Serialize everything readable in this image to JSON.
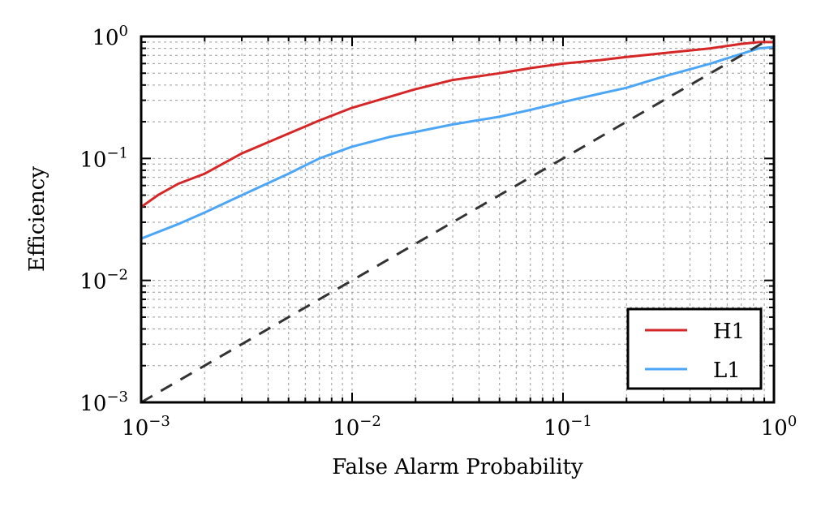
{
  "chart_data": {
    "type": "line",
    "xlabel": "False Alarm Probability",
    "ylabel": "Efficiency",
    "xscale": "log",
    "yscale": "log",
    "xlim": [
      0.001,
      1
    ],
    "ylim": [
      0.001,
      1
    ],
    "grid": true,
    "legend_position": "bottom-right",
    "x_ticks": [
      {
        "base": "10",
        "exp": "−3"
      },
      {
        "base": "10",
        "exp": "−2"
      },
      {
        "base": "10",
        "exp": "−1"
      },
      {
        "base": "10",
        "exp": "0"
      }
    ],
    "y_ticks": [
      {
        "base": "10",
        "exp": "−3"
      },
      {
        "base": "10",
        "exp": "−2"
      },
      {
        "base": "10",
        "exp": "−1"
      },
      {
        "base": "10",
        "exp": "0"
      }
    ],
    "series": [
      {
        "name": "H1",
        "color": "#d62728",
        "x": [
          0.001,
          0.0012,
          0.0015,
          0.002,
          0.003,
          0.005,
          0.007,
          0.01,
          0.015,
          0.02,
          0.03,
          0.05,
          0.07,
          0.1,
          0.15,
          0.2,
          0.3,
          0.5,
          0.7,
          0.85,
          1.0
        ],
        "y": [
          0.04,
          0.05,
          0.062,
          0.075,
          0.11,
          0.16,
          0.205,
          0.26,
          0.32,
          0.37,
          0.44,
          0.5,
          0.55,
          0.6,
          0.64,
          0.68,
          0.73,
          0.8,
          0.87,
          0.9,
          0.9
        ]
      },
      {
        "name": "L1",
        "color": "#4da6f5",
        "x": [
          0.001,
          0.0015,
          0.002,
          0.003,
          0.005,
          0.007,
          0.01,
          0.015,
          0.02,
          0.03,
          0.05,
          0.07,
          0.1,
          0.15,
          0.2,
          0.3,
          0.5,
          0.7,
          0.85,
          1.0
        ],
        "y": [
          0.022,
          0.029,
          0.036,
          0.05,
          0.075,
          0.1,
          0.125,
          0.15,
          0.165,
          0.19,
          0.22,
          0.25,
          0.29,
          0.34,
          0.38,
          0.47,
          0.6,
          0.72,
          0.8,
          0.82
        ]
      },
      {
        "name": "",
        "color": "#333333",
        "dashed": true,
        "x": [
          0.001,
          1
        ],
        "y": [
          0.001,
          1
        ]
      }
    ]
  }
}
